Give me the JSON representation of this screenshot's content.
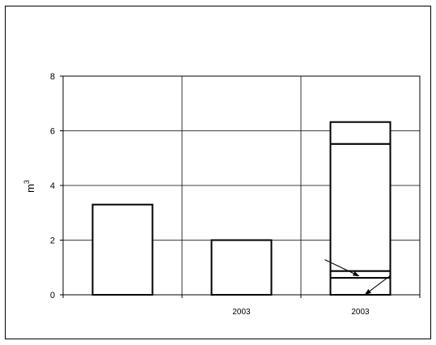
{
  "chart_data": {
    "type": "bar",
    "stacked": true,
    "title": "",
    "xlabel": "",
    "ylabel": "m",
    "ylabel_superscript": "3",
    "ylim": [
      0,
      8
    ],
    "yticks": [
      0,
      2,
      4,
      6,
      8
    ],
    "grid": true,
    "legend": "none",
    "categories": [
      "",
      "2003",
      "2003"
    ],
    "bars": [
      {
        "segments": [
          3.3
        ]
      },
      {
        "segments": [
          2.0
        ]
      },
      {
        "segments": [
          0.62,
          0.25,
          4.65,
          0.8
        ]
      }
    ],
    "annotations": [
      {
        "type": "arrow",
        "points_to": "stack boundary at 0.87"
      },
      {
        "type": "arrow",
        "points_to": "stack boundary at 0.25"
      }
    ]
  }
}
